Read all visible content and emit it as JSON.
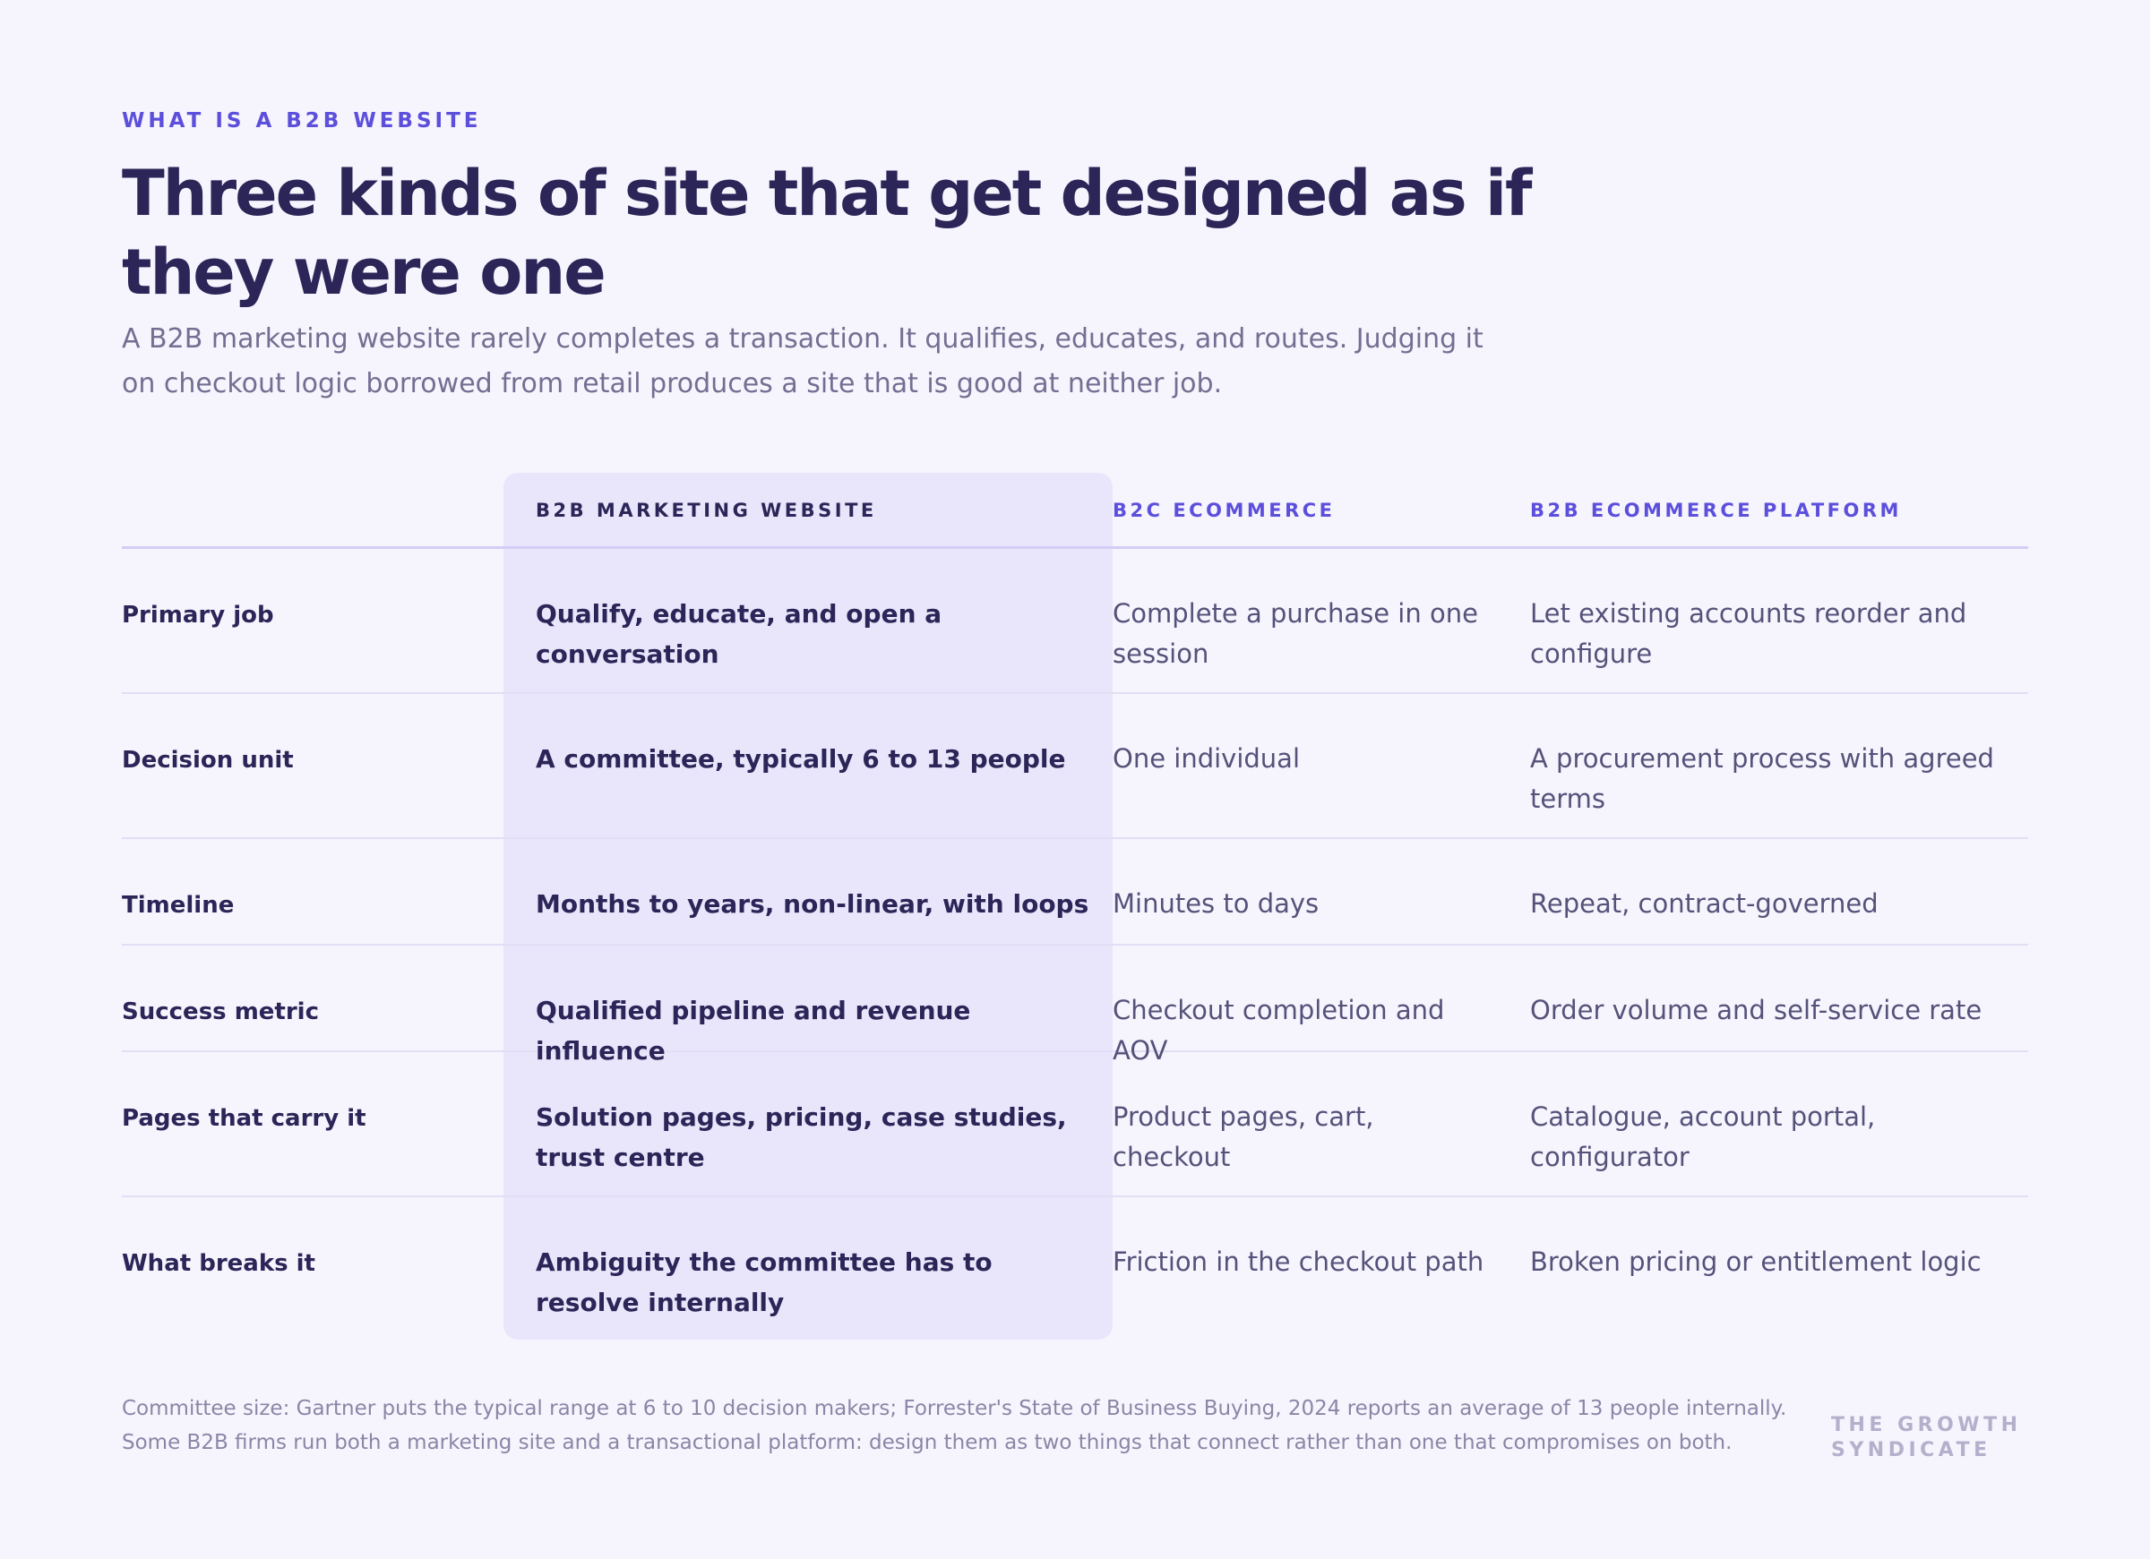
{
  "eyebrow": "WHAT IS A B2B WEBSITE",
  "title": "Three kinds of site that get designed as if they were one",
  "lede": "A B2B marketing website rarely completes a transaction. It qualifies, educates, and routes. Judging it on checkout logic borrowed from retail produces a site that is good at neither job.",
  "table": {
    "headers": [
      "B2B MARKETING WEBSITE",
      "B2C ECOMMERCE",
      "B2B ECOMMERCE PLATFORM"
    ],
    "rows": [
      {
        "label": "Primary job",
        "b2b_marketing": "Qualify, educate, and open a conversation",
        "b2c_ecommerce": "Complete a purchase in one session",
        "b2b_ecommerce": "Let existing accounts reorder and configure"
      },
      {
        "label": "Decision unit",
        "b2b_marketing": "A committee, typically 6 to 13 people",
        "b2c_ecommerce": "One individual",
        "b2b_ecommerce": "A procurement process with agreed terms"
      },
      {
        "label": "Timeline",
        "b2b_marketing": "Months to years, non-linear, with loops",
        "b2c_ecommerce": "Minutes to days",
        "b2b_ecommerce": "Repeat, contract-governed"
      },
      {
        "label": "Success metric",
        "b2b_marketing": "Qualified pipeline and revenue influence",
        "b2c_ecommerce": "Checkout completion and AOV",
        "b2b_ecommerce": "Order volume and self-service rate"
      },
      {
        "label": "Pages that carry it",
        "b2b_marketing": "Solution pages, pricing, case studies, trust centre",
        "b2c_ecommerce": "Product pages, cart, checkout",
        "b2b_ecommerce": "Catalogue, account portal, configurator"
      },
      {
        "label": "What breaks it",
        "b2b_marketing": "Ambiguity the committee has to resolve internally",
        "b2c_ecommerce": "Friction in the checkout path",
        "b2b_ecommerce": "Broken pricing or entitlement logic"
      }
    ]
  },
  "footnote": "Committee size: Gartner puts the typical range at 6 to 10 decision makers; Forrester's State of Business Buying, 2024 reports an average of 13 people internally. Some B2B firms run both a marketing site and a transactional platform: design them as two things that connect rather than one that compromises on both.",
  "brand": "THE GROWTH SYNDICATE",
  "colors": {
    "background": "#f6f4fd",
    "accent": "#5b4fdc",
    "heading": "#2b2558",
    "highlight": "#e9e6fb"
  }
}
